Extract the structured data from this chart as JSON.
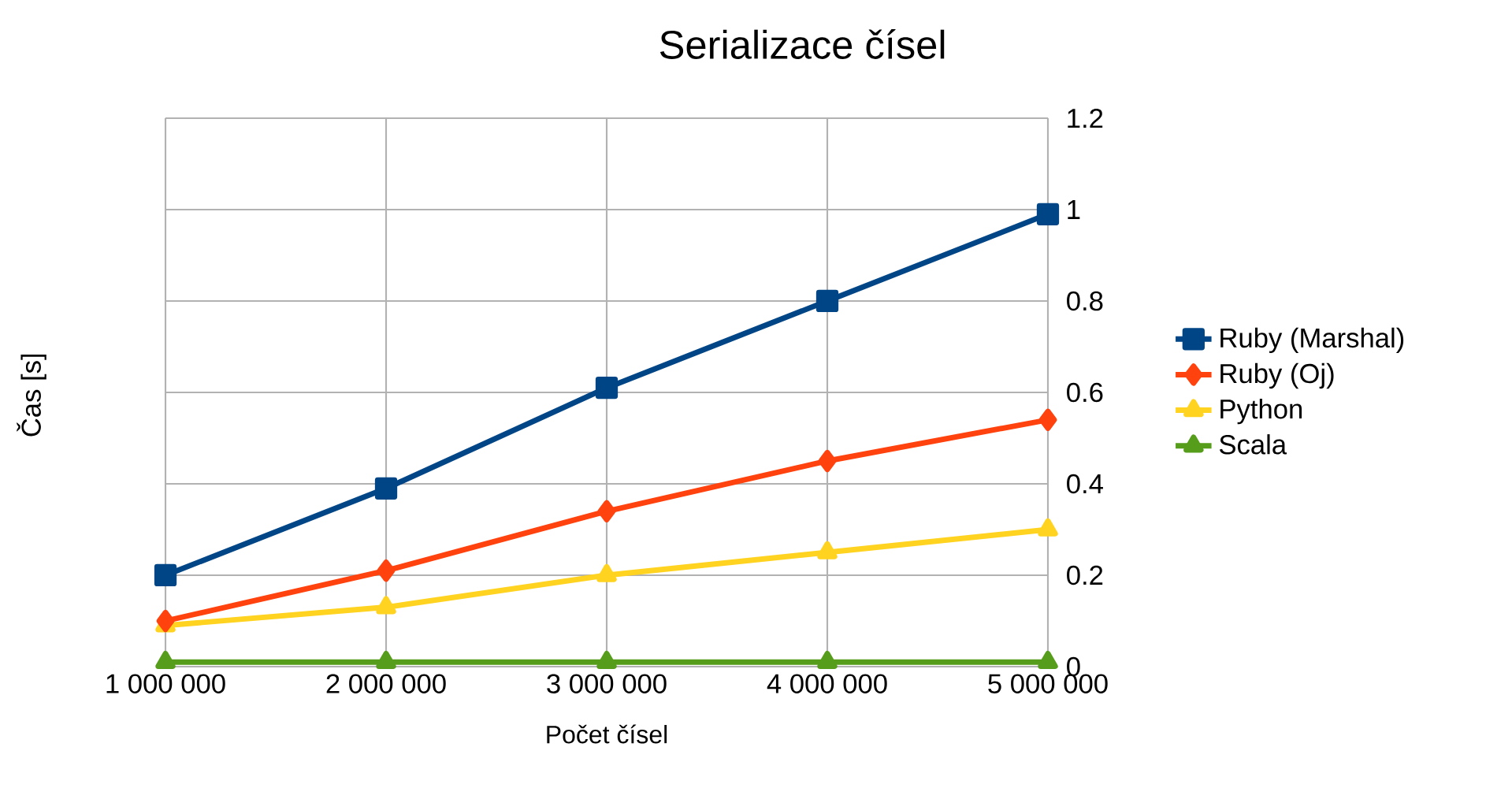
{
  "chart_data": {
    "type": "line",
    "title": "Serializace čísel",
    "xlabel": "Počet čísel",
    "ylabel": "Čas [s]",
    "categories": [
      "1 000 000",
      "2 000 000",
      "3 000 000",
      "4 000 000",
      "5 000 000"
    ],
    "ylim": [
      0,
      1.2
    ],
    "yticks": [
      0,
      0.2,
      0.4,
      0.6,
      0.8,
      1,
      1.2
    ],
    "grid": true,
    "legend": "right",
    "line_style": "solid",
    "series": [
      {
        "name": "Ruby (Marshal)",
        "color": "#004586",
        "marker": "square",
        "values": [
          0.2,
          0.39,
          0.61,
          0.8,
          0.99
        ]
      },
      {
        "name": "Ruby (Oj)",
        "color": "#ff420e",
        "marker": "diamond",
        "values": [
          0.1,
          0.21,
          0.34,
          0.45,
          0.54
        ]
      },
      {
        "name": "Python",
        "color": "#ffd320",
        "marker": "triangle",
        "values": [
          0.09,
          0.13,
          0.2,
          0.25,
          0.3
        ]
      },
      {
        "name": "Scala",
        "color": "#579d1c",
        "marker": "triangle",
        "values": [
          0.01,
          0.01,
          0.01,
          0.01,
          0.01
        ]
      }
    ]
  }
}
